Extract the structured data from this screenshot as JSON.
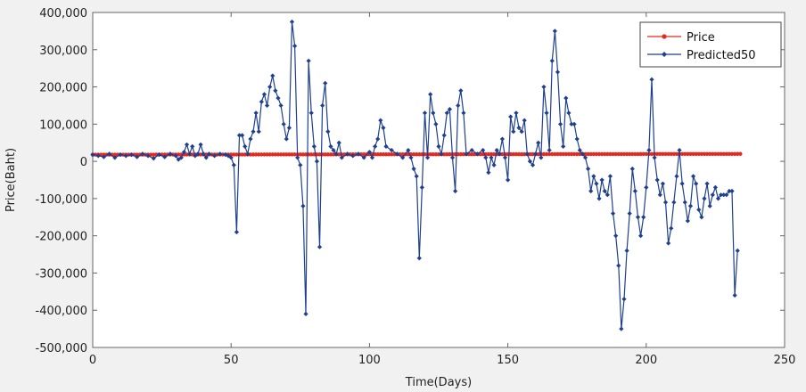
{
  "chart_data": {
    "type": "line",
    "title": "",
    "xlabel": "Time(Days)",
    "ylabel": "Price(Baht)",
    "xlim": [
      0,
      250
    ],
    "ylim": [
      -500000,
      400000
    ],
    "xticks": [
      0,
      50,
      100,
      150,
      200,
      250
    ],
    "xtick_labels": [
      "0",
      "50",
      "100",
      "150",
      "200",
      "250"
    ],
    "yticks": [
      400000,
      300000,
      200000,
      100000,
      0,
      -100000,
      -200000,
      -300000,
      -400000,
      -500000
    ],
    "ytick_labels": [
      "400,000",
      "300,000",
      "200,000",
      "100,000",
      "0",
      "-100,000",
      "-200,000",
      "-300,000",
      "-400,000",
      "-500,000"
    ],
    "grid": false,
    "legend_position": "top-right",
    "series": [
      {
        "name": "Price",
        "color": "#e8281e",
        "marker": "dot",
        "x": [
          0,
          234
        ],
        "y": [
          18000,
          20000
        ],
        "interpolate": "linear",
        "step": 1
      },
      {
        "name": "Predicted50",
        "color": "#1f3f8f",
        "marker": "diamond",
        "points": [
          [
            0,
            18000
          ],
          [
            2,
            15000
          ],
          [
            4,
            12000
          ],
          [
            6,
            20000
          ],
          [
            8,
            10000
          ],
          [
            10,
            18000
          ],
          [
            12,
            15000
          ],
          [
            14,
            18000
          ],
          [
            16,
            12000
          ],
          [
            18,
            20000
          ],
          [
            20,
            15000
          ],
          [
            22,
            8000
          ],
          [
            24,
            18000
          ],
          [
            26,
            12000
          ],
          [
            28,
            20000
          ],
          [
            30,
            15000
          ],
          [
            31,
            5000
          ],
          [
            32,
            10000
          ],
          [
            33,
            25000
          ],
          [
            34,
            45000
          ],
          [
            35,
            20000
          ],
          [
            36,
            40000
          ],
          [
            37,
            15000
          ],
          [
            38,
            20000
          ],
          [
            39,
            45000
          ],
          [
            40,
            20000
          ],
          [
            41,
            10000
          ],
          [
            42,
            20000
          ],
          [
            44,
            15000
          ],
          [
            46,
            20000
          ],
          [
            48,
            18000
          ],
          [
            49,
            15000
          ],
          [
            50,
            10000
          ],
          [
            51,
            -10000
          ],
          [
            52,
            -190000
          ],
          [
            53,
            70000
          ],
          [
            54,
            70000
          ],
          [
            55,
            40000
          ],
          [
            56,
            20000
          ],
          [
            57,
            60000
          ],
          [
            58,
            80000
          ],
          [
            59,
            130000
          ],
          [
            60,
            80000
          ],
          [
            61,
            160000
          ],
          [
            62,
            180000
          ],
          [
            63,
            150000
          ],
          [
            64,
            200000
          ],
          [
            65,
            230000
          ],
          [
            66,
            190000
          ],
          [
            67,
            170000
          ],
          [
            68,
            150000
          ],
          [
            69,
            100000
          ],
          [
            70,
            60000
          ],
          [
            71,
            90000
          ],
          [
            72,
            375000
          ],
          [
            73,
            310000
          ],
          [
            74,
            10000
          ],
          [
            75,
            -10000
          ],
          [
            76,
            -120000
          ],
          [
            77,
            -410000
          ],
          [
            78,
            270000
          ],
          [
            79,
            130000
          ],
          [
            80,
            40000
          ],
          [
            81,
            0
          ],
          [
            82,
            -230000
          ],
          [
            83,
            150000
          ],
          [
            84,
            210000
          ],
          [
            85,
            80000
          ],
          [
            86,
            40000
          ],
          [
            87,
            30000
          ],
          [
            88,
            20000
          ],
          [
            89,
            50000
          ],
          [
            90,
            10000
          ],
          [
            92,
            20000
          ],
          [
            94,
            15000
          ],
          [
            96,
            20000
          ],
          [
            98,
            10000
          ],
          [
            100,
            25000
          ],
          [
            101,
            10000
          ],
          [
            102,
            40000
          ],
          [
            103,
            60000
          ],
          [
            104,
            110000
          ],
          [
            105,
            90000
          ],
          [
            106,
            40000
          ],
          [
            108,
            30000
          ],
          [
            110,
            20000
          ],
          [
            112,
            10000
          ],
          [
            114,
            30000
          ],
          [
            115,
            10000
          ],
          [
            116,
            -20000
          ],
          [
            117,
            -40000
          ],
          [
            118,
            -260000
          ],
          [
            119,
            -70000
          ],
          [
            120,
            130000
          ],
          [
            121,
            10000
          ],
          [
            122,
            180000
          ],
          [
            123,
            130000
          ],
          [
            124,
            100000
          ],
          [
            125,
            40000
          ],
          [
            126,
            20000
          ],
          [
            127,
            70000
          ],
          [
            128,
            130000
          ],
          [
            129,
            140000
          ],
          [
            130,
            10000
          ],
          [
            131,
            -80000
          ],
          [
            132,
            150000
          ],
          [
            133,
            190000
          ],
          [
            134,
            130000
          ],
          [
            135,
            20000
          ],
          [
            137,
            30000
          ],
          [
            139,
            20000
          ],
          [
            141,
            30000
          ],
          [
            142,
            10000
          ],
          [
            143,
            -30000
          ],
          [
            144,
            10000
          ],
          [
            145,
            -10000
          ],
          [
            146,
            30000
          ],
          [
            147,
            20000
          ],
          [
            148,
            60000
          ],
          [
            149,
            10000
          ],
          [
            150,
            -50000
          ],
          [
            151,
            120000
          ],
          [
            152,
            80000
          ],
          [
            153,
            130000
          ],
          [
            154,
            90000
          ],
          [
            155,
            80000
          ],
          [
            156,
            110000
          ],
          [
            157,
            20000
          ],
          [
            158,
            0
          ],
          [
            159,
            -10000
          ],
          [
            160,
            20000
          ],
          [
            161,
            50000
          ],
          [
            162,
            10000
          ],
          [
            163,
            200000
          ],
          [
            164,
            130000
          ],
          [
            165,
            30000
          ],
          [
            166,
            270000
          ],
          [
            167,
            350000
          ],
          [
            168,
            240000
          ],
          [
            169,
            100000
          ],
          [
            170,
            40000
          ],
          [
            171,
            170000
          ],
          [
            172,
            130000
          ],
          [
            173,
            100000
          ],
          [
            174,
            100000
          ],
          [
            175,
            60000
          ],
          [
            176,
            30000
          ],
          [
            177,
            20000
          ],
          [
            178,
            10000
          ],
          [
            179,
            -20000
          ],
          [
            180,
            -80000
          ],
          [
            181,
            -40000
          ],
          [
            182,
            -60000
          ],
          [
            183,
            -100000
          ],
          [
            184,
            -50000
          ],
          [
            185,
            -80000
          ],
          [
            186,
            -90000
          ],
          [
            187,
            -40000
          ],
          [
            188,
            -140000
          ],
          [
            189,
            -200000
          ],
          [
            190,
            -280000
          ],
          [
            191,
            -450000
          ],
          [
            192,
            -370000
          ],
          [
            193,
            -240000
          ],
          [
            194,
            -140000
          ],
          [
            195,
            -20000
          ],
          [
            196,
            -80000
          ],
          [
            197,
            -150000
          ],
          [
            198,
            -200000
          ],
          [
            199,
            -150000
          ],
          [
            200,
            -70000
          ],
          [
            201,
            30000
          ],
          [
            202,
            220000
          ],
          [
            203,
            10000
          ],
          [
            204,
            -50000
          ],
          [
            205,
            -90000
          ],
          [
            206,
            -60000
          ],
          [
            207,
            -110000
          ],
          [
            208,
            -220000
          ],
          [
            209,
            -180000
          ],
          [
            210,
            -110000
          ],
          [
            211,
            -40000
          ],
          [
            212,
            30000
          ],
          [
            213,
            -60000
          ],
          [
            214,
            -110000
          ],
          [
            215,
            -160000
          ],
          [
            216,
            -120000
          ],
          [
            217,
            -40000
          ],
          [
            218,
            -60000
          ],
          [
            219,
            -130000
          ],
          [
            220,
            -150000
          ],
          [
            221,
            -100000
          ],
          [
            222,
            -60000
          ],
          [
            223,
            -120000
          ],
          [
            224,
            -90000
          ],
          [
            225,
            -70000
          ],
          [
            226,
            -100000
          ],
          [
            227,
            -90000
          ],
          [
            228,
            -90000
          ],
          [
            229,
            -90000
          ],
          [
            230,
            -80000
          ],
          [
            231,
            -80000
          ],
          [
            232,
            -360000
          ],
          [
            233,
            -240000
          ]
        ]
      }
    ]
  }
}
